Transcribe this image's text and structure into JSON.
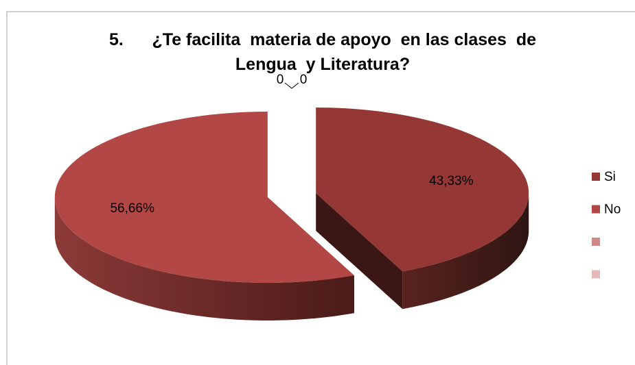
{
  "chart_data": {
    "type": "pie3d",
    "title": "5.      ¿Te facilita  materia de apoyo  en las clases  de Lengua  y Literatura?",
    "categories": [
      "Si",
      "No",
      null,
      null
    ],
    "values": [
      43.33,
      56.66,
      0,
      0
    ],
    "value_labels": [
      "43,33%",
      "56,66%",
      "0",
      "0"
    ],
    "colors": [
      "#953735",
      "#b34745",
      "#d08a88",
      "#e6b9b8"
    ],
    "legend": "right"
  }
}
